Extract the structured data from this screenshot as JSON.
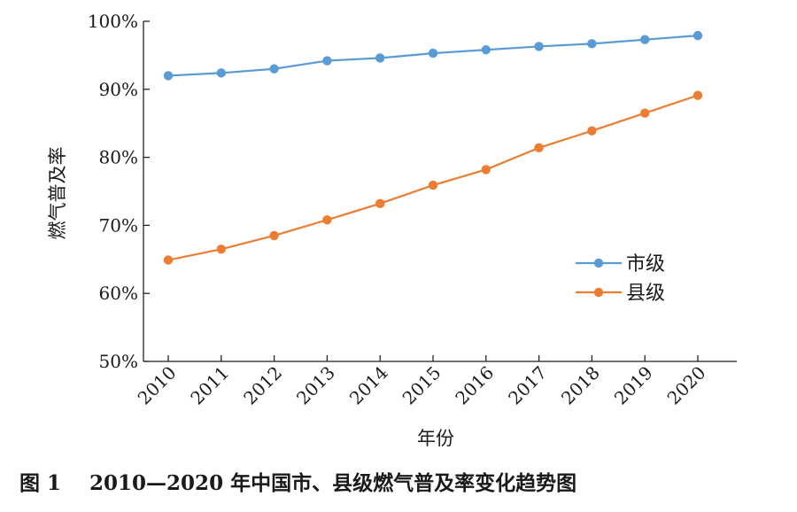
{
  "chart_data": {
    "type": "line",
    "caption": "图 1    2010—2020 年中国市、县级燃气普及率变化趋势图",
    "xlabel": "年份",
    "ylabel": "燃气普及率",
    "categories": [
      "2010",
      "2011",
      "2012",
      "2013",
      "2014",
      "2015",
      "2016",
      "2017",
      "2018",
      "2019",
      "2020"
    ],
    "y_ticks": [
      "50%",
      "60%",
      "70%",
      "80%",
      "90%",
      "100%"
    ],
    "y_tick_values": [
      50,
      60,
      70,
      80,
      90,
      100
    ],
    "ylim": [
      50,
      100
    ],
    "grid": false,
    "legend_position": "right-middle",
    "series": [
      {
        "name": "市级",
        "color": "#5b9bd5",
        "values": [
          92.0,
          92.4,
          93.0,
          94.2,
          94.6,
          95.3,
          95.8,
          96.3,
          96.7,
          97.3,
          97.9
        ]
      },
      {
        "name": "县级",
        "color": "#ed7d31",
        "values": [
          64.9,
          66.5,
          68.5,
          70.8,
          73.2,
          75.9,
          78.2,
          81.4,
          83.9,
          86.5,
          89.1
        ]
      }
    ]
  }
}
